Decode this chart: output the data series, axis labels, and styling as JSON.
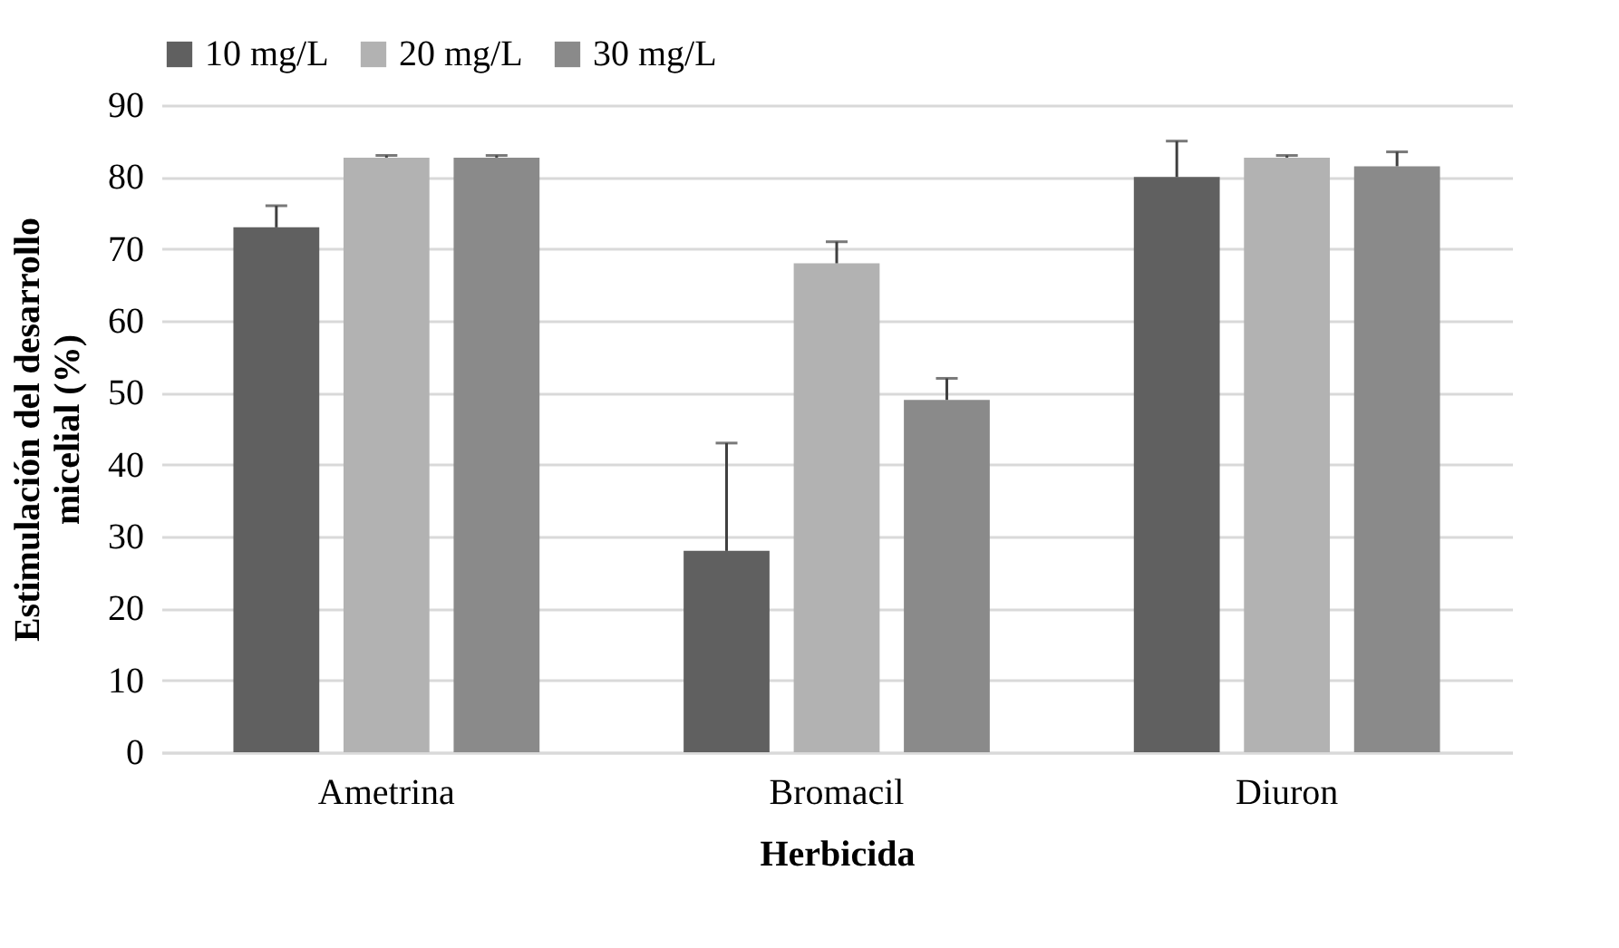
{
  "chart_data": {
    "type": "bar",
    "xlabel": "Herbicida",
    "ylabel": "Estimulación del desarrollo micelial (%)",
    "categories": [
      "Ametrina",
      "Bromacil",
      "Diuron"
    ],
    "series": [
      {
        "name": "10 mg/L",
        "color": "#606060",
        "values": [
          73,
          28,
          80
        ],
        "errors": [
          [
            73,
            76
          ],
          [
            28,
            43
          ],
          [
            80,
            85
          ]
        ]
      },
      {
        "name": "20 mg/L",
        "color": "#b2b2b2",
        "values": [
          82.7,
          68,
          82.7
        ],
        "errors": [
          [
            82.7,
            83
          ],
          [
            68,
            71
          ],
          [
            82.7,
            83
          ]
        ]
      },
      {
        "name": "30 mg/L",
        "color": "#8a8a8a",
        "values": [
          82.7,
          49,
          81.5
        ],
        "errors": [
          [
            82.7,
            83
          ],
          [
            49,
            52
          ],
          [
            81.5,
            83.5
          ]
        ]
      }
    ],
    "ylim": [
      0,
      90
    ],
    "yticks": [
      0,
      10,
      20,
      30,
      40,
      50,
      60,
      70,
      80,
      90
    ],
    "grid": "y",
    "legend": "top"
  }
}
